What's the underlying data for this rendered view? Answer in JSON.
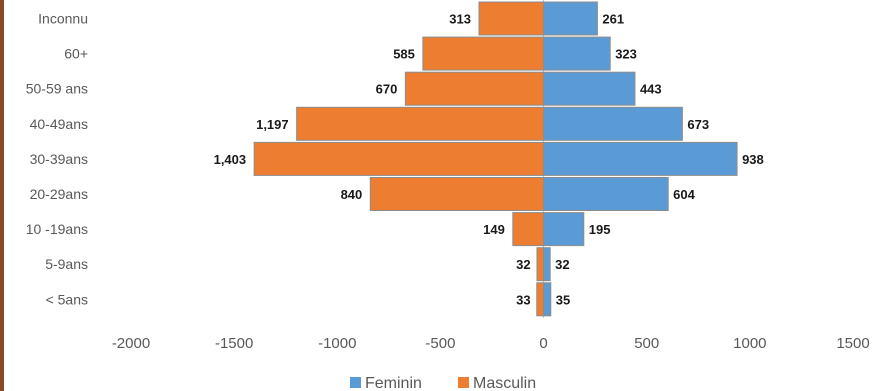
{
  "chart_data": {
    "type": "bar",
    "orientation": "horizontal",
    "categories": [
      "Inconnu",
      "60+",
      "50-59 ans",
      "40-49ans",
      "30-39ans",
      "20-29ans",
      "10 -19ans",
      "5-9ans",
      "< 5ans"
    ],
    "series": [
      {
        "name": "Feminin",
        "color": "#5b9bd5",
        "values": [
          261,
          323,
          443,
          673,
          938,
          604,
          195,
          32,
          35
        ]
      },
      {
        "name": "Masculin",
        "color": "#ed7d31",
        "values": [
          -313,
          -585,
          -670,
          -1197,
          -1403,
          -840,
          -149,
          -32,
          -33
        ]
      }
    ],
    "data_labels": {
      "Feminin": [
        "261",
        "323",
        "443",
        "673",
        "938",
        "604",
        "195",
        "32",
        "35"
      ],
      "Masculin": [
        "313",
        "585",
        "670",
        "1,197",
        "1,403",
        "840",
        "149",
        "32",
        "33"
      ]
    },
    "xlim": [
      -2000,
      1500
    ],
    "xticks": [
      -2000,
      -1500,
      -1000,
      -500,
      0,
      500,
      1000,
      1500
    ],
    "xtick_labels": [
      "-2000",
      "-1500",
      "-1000",
      "-500",
      "0",
      "500",
      "1000",
      "1500"
    ],
    "legend": [
      "Feminin",
      "Masculin"
    ],
    "legend_position": "bottom",
    "grid": false,
    "title": "",
    "xlabel": "",
    "ylabel": ""
  }
}
